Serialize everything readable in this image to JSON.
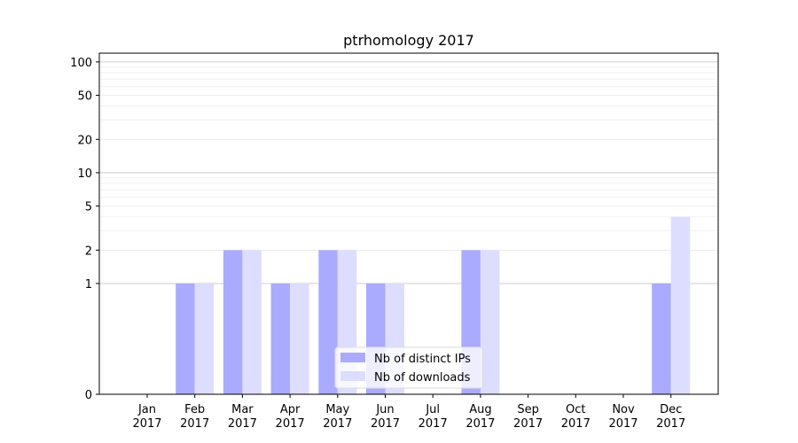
{
  "chart_data": {
    "type": "bar",
    "title": "ptrhomology 2017",
    "xlabel": "",
    "ylabel": "",
    "y_scale": "symlog",
    "ylim": [
      0,
      120
    ],
    "y_ticks": [
      0,
      1,
      2,
      5,
      10,
      20,
      50,
      100
    ],
    "y_tick_labels": [
      "0",
      "1",
      "2",
      "5",
      "10",
      "20",
      "50",
      "100"
    ],
    "categories": [
      "Jan",
      "Feb",
      "Mar",
      "Apr",
      "May",
      "Jun",
      "Jul",
      "Aug",
      "Sep",
      "Oct",
      "Nov",
      "Dec"
    ],
    "category_sublabel": "2017",
    "series": [
      {
        "name": "Nb of distinct IPs",
        "color": "#aaaaff",
        "values": [
          0,
          1,
          2,
          1,
          2,
          1,
          0,
          2,
          0,
          0,
          0,
          1
        ]
      },
      {
        "name": "Nb of downloads",
        "color": "#ddddff",
        "values": [
          0,
          1,
          2,
          1,
          2,
          1,
          0,
          2,
          0,
          0,
          0,
          4
        ]
      }
    ],
    "grid": true,
    "legend_position": "lower-center"
  }
}
